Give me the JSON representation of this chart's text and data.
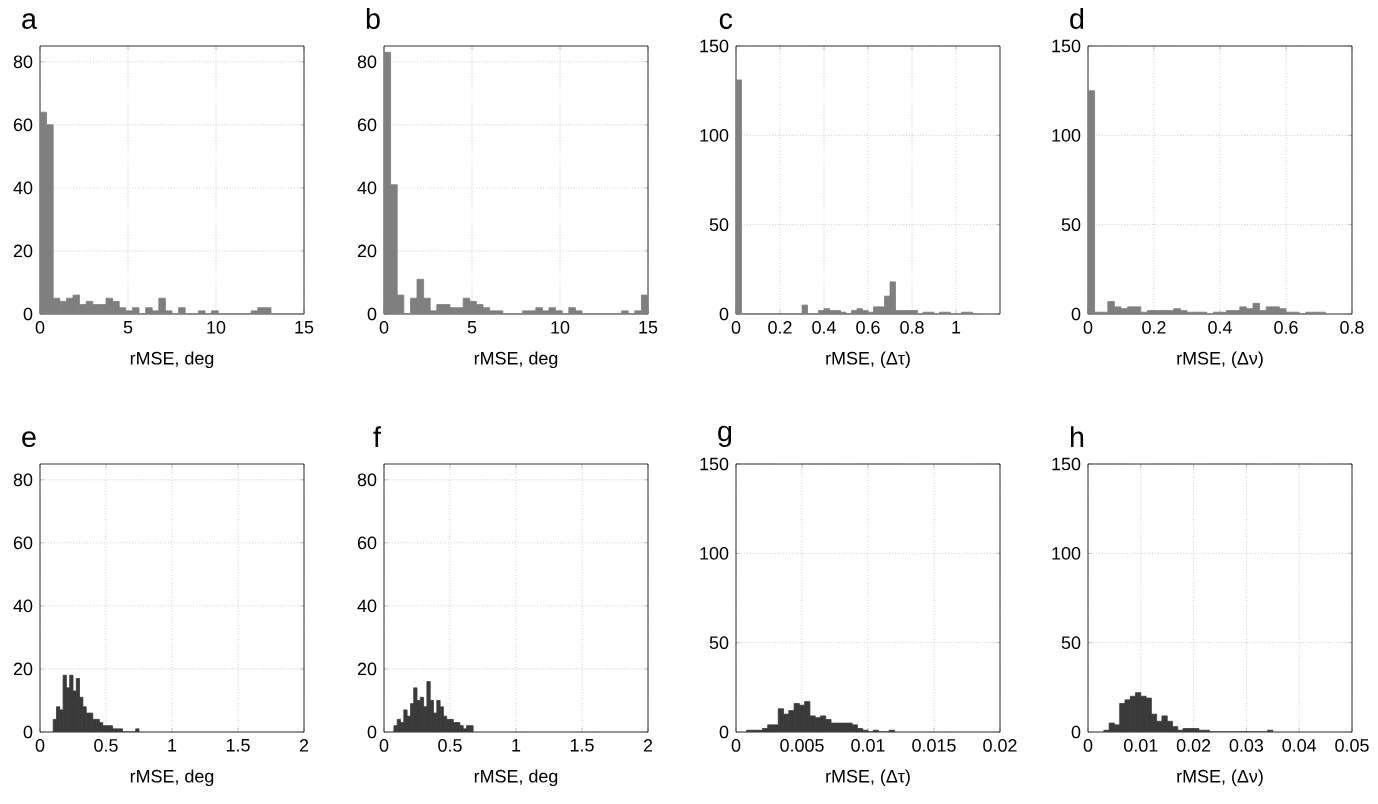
{
  "chart_data": [
    {
      "type": "histogram",
      "title": "a",
      "xlabel": "rMSE, deg",
      "color": "#7f7f7f",
      "grid": true,
      "xlim": [
        0,
        15
      ],
      "xticks": [
        0,
        5,
        10,
        15
      ],
      "ylim": [
        0,
        85
      ],
      "yticks": [
        0,
        20,
        40,
        60,
        80
      ],
      "bins": [
        0,
        0.375,
        0.75,
        1.125,
        1.5,
        1.875,
        2.25,
        2.625,
        3,
        3.375,
        3.75,
        4.125,
        4.5,
        4.875,
        5.25,
        5.625,
        6,
        6.375,
        6.75,
        7.125,
        7.5,
        7.875,
        8.25,
        8.625,
        9,
        9.375,
        9.75,
        10.125,
        10.5,
        10.875,
        11.25,
        11.625,
        12,
        12.375,
        12.75,
        13.125,
        13.5,
        13.875,
        14.25,
        14.625,
        15
      ],
      "values": [
        64,
        60,
        5,
        4,
        5,
        6,
        3,
        4,
        3,
        3,
        5,
        4,
        2,
        1,
        2,
        0,
        2,
        1,
        5,
        1,
        0,
        2,
        0,
        0,
        1,
        0,
        1,
        0,
        0,
        0,
        0,
        0,
        1,
        2,
        2,
        0,
        0,
        0,
        0,
        0
      ]
    },
    {
      "type": "histogram",
      "title": "b",
      "xlabel": "rMSE, deg",
      "color": "#7f7f7f",
      "grid": true,
      "xlim": [
        0,
        15
      ],
      "xticks": [
        0,
        5,
        10,
        15
      ],
      "ylim": [
        0,
        85
      ],
      "yticks": [
        0,
        20,
        40,
        60,
        80
      ],
      "bins": [
        0,
        0.375,
        0.75,
        1.125,
        1.5,
        1.875,
        2.25,
        2.625,
        3,
        3.375,
        3.75,
        4.125,
        4.5,
        4.875,
        5.25,
        5.625,
        6,
        6.375,
        6.75,
        7.125,
        7.5,
        7.875,
        8.25,
        8.625,
        9,
        9.375,
        9.75,
        10.125,
        10.5,
        10.875,
        11.25,
        11.625,
        12,
        12.375,
        12.75,
        13.125,
        13.5,
        13.875,
        14.25,
        14.625,
        15
      ],
      "values": [
        83,
        41,
        6,
        0,
        5,
        11,
        5,
        1,
        3,
        3,
        2,
        2,
        5,
        4,
        3,
        2,
        1,
        1,
        0,
        0,
        0,
        1,
        1,
        2,
        1,
        2,
        1,
        0,
        2,
        1,
        0,
        0,
        0,
        0,
        0,
        0,
        1,
        0,
        1,
        6
      ]
    },
    {
      "type": "histogram",
      "title": "c",
      "xlabel": "rMSE, (Δτ)",
      "color": "#7f7f7f",
      "grid": true,
      "xlim": [
        0,
        1.2
      ],
      "xticks": [
        0,
        0.2,
        0.4,
        0.6,
        0.8,
        1
      ],
      "ylim": [
        0,
        150
      ],
      "yticks": [
        0,
        50,
        100,
        150
      ],
      "bins": [
        0,
        0.025,
        0.05,
        0.075,
        0.1,
        0.125,
        0.15,
        0.175,
        0.2,
        0.225,
        0.25,
        0.275,
        0.3,
        0.325,
        0.35,
        0.375,
        0.4,
        0.425,
        0.45,
        0.475,
        0.5,
        0.525,
        0.55,
        0.575,
        0.6,
        0.625,
        0.65,
        0.675,
        0.7,
        0.725,
        0.75,
        0.775,
        0.8,
        0.825,
        0.85,
        0.875,
        0.9,
        0.925,
        0.95,
        0.975,
        1,
        1.025,
        1.05,
        1.075,
        1.1
      ],
      "values": [
        131,
        0,
        0,
        0,
        0,
        0,
        0,
        0,
        0,
        0,
        0,
        0,
        5,
        0,
        0,
        2,
        3,
        2,
        2,
        1,
        0,
        2,
        3,
        2,
        1,
        4,
        4,
        10,
        18,
        2,
        2,
        2,
        2,
        0,
        1,
        1,
        0,
        1,
        1,
        0,
        0,
        1,
        1,
        0
      ]
    },
    {
      "type": "histogram",
      "title": "d",
      "xlabel": "rMSE, (Δν)",
      "color": "#7f7f7f",
      "grid": true,
      "xlim": [
        0,
        0.8
      ],
      "xticks": [
        0,
        0.2,
        0.4,
        0.6,
        0.8
      ],
      "ylim": [
        0,
        150
      ],
      "yticks": [
        0,
        50,
        100,
        150
      ],
      "bins": [
        0,
        0.02,
        0.04,
        0.06,
        0.08,
        0.1,
        0.12,
        0.14,
        0.16,
        0.18,
        0.2,
        0.22,
        0.24,
        0.26,
        0.28,
        0.3,
        0.32,
        0.34,
        0.36,
        0.38,
        0.4,
        0.42,
        0.44,
        0.46,
        0.48,
        0.5,
        0.52,
        0.54,
        0.56,
        0.58,
        0.6,
        0.62,
        0.64,
        0.66,
        0.68,
        0.7,
        0.72
      ],
      "values": [
        125,
        1,
        1,
        7,
        4,
        3,
        4,
        4,
        1,
        2,
        2,
        2,
        2,
        3,
        2,
        1,
        1,
        1,
        0,
        1,
        1,
        2,
        2,
        4,
        3,
        6,
        2,
        4,
        4,
        3,
        1,
        1,
        0,
        1,
        1,
        1
      ]
    },
    {
      "type": "histogram",
      "title": "e",
      "xlabel": "rMSE, deg",
      "color": "#3a3a3a",
      "grid": true,
      "xlim": [
        0,
        2
      ],
      "xticks": [
        0,
        0.5,
        1,
        1.5,
        2
      ],
      "ylim": [
        0,
        85
      ],
      "yticks": [
        0,
        20,
        40,
        60,
        80
      ],
      "bins": [
        0.1,
        0.125,
        0.15,
        0.175,
        0.2,
        0.225,
        0.25,
        0.275,
        0.3,
        0.325,
        0.35,
        0.375,
        0.4,
        0.425,
        0.45,
        0.475,
        0.5,
        0.525,
        0.55,
        0.575,
        0.6,
        0.625,
        0.725,
        0.75
      ],
      "values": [
        4,
        8,
        7,
        18,
        14,
        18,
        13,
        17,
        11,
        8,
        6,
        6,
        4,
        4,
        3,
        2,
        2,
        2,
        1,
        1,
        1,
        0,
        1
      ]
    },
    {
      "type": "histogram",
      "title": "f",
      "xlabel": "rMSE, deg",
      "color": "#3a3a3a",
      "grid": true,
      "xlim": [
        0,
        2
      ],
      "xticks": [
        0,
        0.5,
        1,
        1.5,
        2
      ],
      "ylim": [
        0,
        85
      ],
      "yticks": [
        0,
        20,
        40,
        60,
        80
      ],
      "bins": [
        0.075,
        0.1,
        0.125,
        0.15,
        0.175,
        0.2,
        0.225,
        0.25,
        0.275,
        0.3,
        0.325,
        0.35,
        0.375,
        0.4,
        0.425,
        0.45,
        0.475,
        0.5,
        0.525,
        0.55,
        0.575,
        0.6,
        0.625,
        0.65,
        0.675
      ],
      "values": [
        2,
        4,
        3,
        7,
        5,
        9,
        14,
        10,
        11,
        8,
        16,
        10,
        6,
        10,
        8,
        5,
        4,
        4,
        3,
        3,
        2,
        1,
        2,
        2
      ]
    },
    {
      "type": "histogram",
      "title": "g",
      "xlabel": "rMSE, (Δτ)",
      "color": "#3a3a3a",
      "grid": true,
      "xlim": [
        0,
        0.02
      ],
      "xticks": [
        0,
        0.005,
        0.01,
        0.015,
        0.02
      ],
      "ylim": [
        0,
        150
      ],
      "yticks": [
        0,
        50,
        100,
        150
      ],
      "bins": [
        0.0008,
        0.0012,
        0.0016,
        0.002,
        0.0024,
        0.0028,
        0.0032,
        0.0036,
        0.004,
        0.0044,
        0.0048,
        0.0052,
        0.0056,
        0.006,
        0.0064,
        0.0068,
        0.0072,
        0.0076,
        0.008,
        0.0084,
        0.0088,
        0.0092,
        0.0096,
        0.01,
        0.0104,
        0.0108,
        0.0112,
        0.0116,
        0.012
      ],
      "values": [
        1,
        1,
        1,
        2,
        4,
        4,
        13,
        10,
        12,
        16,
        15,
        17,
        9,
        8,
        9,
        7,
        5,
        5,
        5,
        5,
        4,
        2,
        1,
        0,
        1,
        0,
        0,
        1
      ]
    },
    {
      "type": "histogram",
      "title": "h",
      "xlabel": "rMSE, (Δν)",
      "color": "#3a3a3a",
      "grid": true,
      "xlim": [
        0,
        0.05
      ],
      "xticks": [
        0,
        0.01,
        0.02,
        0.03,
        0.04,
        0.05
      ],
      "ylim": [
        0,
        150
      ],
      "yticks": [
        0,
        50,
        100,
        150
      ],
      "bins": [
        0.003,
        0.004,
        0.005,
        0.006,
        0.007,
        0.008,
        0.009,
        0.01,
        0.011,
        0.012,
        0.013,
        0.014,
        0.015,
        0.016,
        0.017,
        0.018,
        0.019,
        0.02,
        0.021,
        0.022,
        0.023,
        0.024,
        0.025,
        0.026,
        0.027,
        0.028,
        0.029,
        0.03,
        0.031,
        0.032,
        0.033,
        0.034,
        0.035
      ],
      "values": [
        1,
        5,
        4,
        16,
        18,
        20,
        22,
        20,
        19,
        10,
        6,
        9,
        6,
        3,
        1,
        2,
        2,
        2,
        1,
        1,
        0,
        0,
        0,
        0,
        0,
        0,
        0,
        0,
        0,
        0,
        0,
        1
      ]
    }
  ]
}
